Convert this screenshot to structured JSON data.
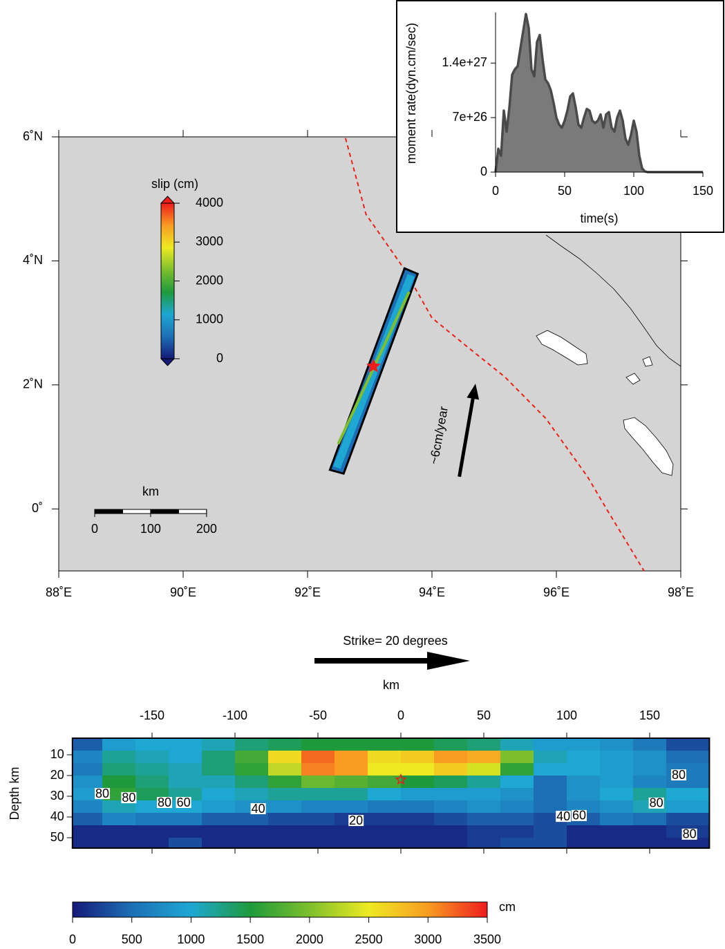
{
  "chart_data": [
    {
      "type": "map",
      "xlim": [
        88,
        98
      ],
      "ylim": [
        -1,
        6
      ],
      "xticks": [
        {
          "value": 88,
          "label": "88˚E"
        },
        {
          "value": 90,
          "label": "90˚E"
        },
        {
          "value": 92,
          "label": "92˚E"
        },
        {
          "value": 94,
          "label": "94˚E"
        },
        {
          "value": 96,
          "label": "96˚E"
        },
        {
          "value": 98,
          "label": "98˚E"
        }
      ],
      "yticks": [
        {
          "value": 0,
          "label": "0˚"
        },
        {
          "value": 2,
          "label": "2˚N"
        },
        {
          "value": 4,
          "label": "4˚N"
        },
        {
          "value": 6,
          "label": "6˚N"
        }
      ],
      "trench": {
        "color": "#e8201c",
        "lon": [
          92.61,
          92.94,
          93.56,
          94.0,
          94.61,
          95.17,
          95.83,
          96.5,
          96.83,
          97.41
        ],
        "lat": [
          5.98,
          4.75,
          3.86,
          3.08,
          2.58,
          2.13,
          1.46,
          0.52,
          -0.04,
          -1.0
        ]
      },
      "fault": {
        "lon": [
          93.56,
          93.77,
          92.58,
          92.36
        ],
        "lat": [
          3.88,
          3.79,
          0.57,
          0.63
        ]
      },
      "epicenter": {
        "lon": 93.06,
        "lat": 2.3
      },
      "plate_motion": {
        "label": "~6cm/year",
        "lon": [
          94.44,
          94.7
        ],
        "lat": [
          0.52,
          2.02
        ]
      },
      "scale_bar": {
        "label": "km",
        "ticks": [
          0,
          100,
          200
        ]
      },
      "colorbar": {
        "label": "slip (cm)",
        "range": [
          0,
          4000
        ],
        "ticks": [
          0,
          1000,
          2000,
          3000,
          4000
        ]
      },
      "colormap": [
        "#151a78",
        "#1d6fb5",
        "#1ea7d3",
        "#1e9a3c",
        "#7dbf2c",
        "#eeea22",
        "#f89c22",
        "#ee1c1c"
      ]
    },
    {
      "type": "area",
      "x": [
        0,
        2,
        4,
        6,
        8,
        10,
        12,
        14,
        16,
        18,
        20,
        22,
        24,
        26,
        28,
        30,
        32,
        34,
        36,
        38,
        40,
        42,
        44,
        46,
        48,
        50,
        52,
        54,
        56,
        58,
        60,
        62,
        64,
        66,
        68,
        70,
        72,
        74,
        76,
        78,
        80,
        82,
        84,
        86,
        88,
        90,
        92,
        94,
        96,
        98,
        100,
        102,
        104,
        106,
        108,
        110,
        120,
        130,
        140,
        150
      ],
      "values": [
        0,
        3e+26,
        2.1e+26,
        7.9e+26,
        5.2e+26,
        8.3e+26,
        1.25e+27,
        1.32e+27,
        1.36e+27,
        1.59e+27,
        1.81e+27,
        2.03e+27,
        1.85e+27,
        1.32e+27,
        1.23e+27,
        1.67e+27,
        1.76e+27,
        1.45e+27,
        1.19e+27,
        1.14e+27,
        1.05e+27,
        8.9e+26,
        7e+26,
        6.1e+26,
        5.7e+26,
        6.6e+26,
        7.9e+26,
        9.7e+26,
        1.01e+27,
        8.3e+26,
        6.1e+26,
        5.7e+26,
        7e+26,
        8.1e+26,
        7.9e+26,
        6.6e+26,
        6.3e+26,
        6.6e+26,
        7.4e+26,
        5.7e+26,
        7.4e+26,
        7.7e+26,
        5.7e+26,
        5.2e+26,
        7e+26,
        7.9e+26,
        6.6e+26,
        4.3e+26,
        3.5e+26,
        4.8e+26,
        6.6e+26,
        5.2e+26,
        2.1e+26,
        5e+25,
        1e+25,
        0,
        0,
        0,
        0,
        0
      ],
      "xlim": [
        0,
        150
      ],
      "ylim": [
        0,
        2.05e+27
      ],
      "xticks": [
        0,
        50,
        100,
        150
      ],
      "yticks": [
        0,
        {
          "value": 7e+26,
          "label": "7e+26"
        },
        {
          "value": 1.4e+27,
          "label": "1.4e+27"
        }
      ],
      "xlabel": "time(s)",
      "ylabel": "moment rate(dyn.cm/sec)",
      "color": "#7a7a7a"
    },
    {
      "type": "heatmap",
      "strike_label": "Strike= 20 degrees",
      "xlabel": "km",
      "ylabel": "Depth km",
      "xlim": [
        -198,
        186
      ],
      "ylim": [
        2,
        55
      ],
      "xticks": [
        -150,
        -100,
        -50,
        0,
        50,
        100,
        150
      ],
      "yticks": [
        10,
        20,
        30,
        40,
        50
      ],
      "x_edges": [
        -198,
        -180,
        -160,
        -140,
        -120,
        -100,
        -80,
        -60,
        -40,
        -20,
        0,
        20,
        40,
        60,
        80,
        100,
        120,
        140,
        160,
        186
      ],
      "depth_edges": [
        2,
        8,
        14,
        20,
        26,
        32,
        38,
        44,
        50,
        55
      ],
      "values": [
        [
          400,
          900,
          1000,
          1000,
          1100,
          1300,
          1400,
          1500,
          1500,
          1500,
          1500,
          1400,
          1300,
          1100,
          900,
          900,
          800,
          600,
          300
        ],
        [
          700,
          1200,
          1100,
          1000,
          1300,
          1700,
          2600,
          3200,
          3000,
          2600,
          2700,
          3000,
          2900,
          2000,
          1100,
          1000,
          900,
          800,
          500
        ],
        [
          600,
          1300,
          1200,
          1100,
          1300,
          1600,
          2300,
          3100,
          3000,
          2500,
          2500,
          2700,
          2400,
          1600,
          1000,
          1000,
          900,
          800,
          600
        ],
        [
          800,
          1500,
          1300,
          1100,
          1100,
          1300,
          1600,
          1900,
          1800,
          1700,
          1500,
          1400,
          1200,
          1000,
          500,
          800,
          900,
          700,
          600
        ],
        [
          900,
          1600,
          1400,
          1200,
          1000,
          1100,
          1200,
          1200,
          1200,
          1000,
          900,
          900,
          900,
          800,
          500,
          800,
          1000,
          1200,
          1000
        ],
        [
          700,
          1100,
          1000,
          1000,
          900,
          800,
          800,
          700,
          700,
          600,
          600,
          700,
          800,
          700,
          500,
          700,
          800,
          1100,
          900
        ],
        [
          400,
          700,
          600,
          600,
          400,
          400,
          300,
          300,
          200,
          200,
          200,
          300,
          400,
          400,
          300,
          400,
          600,
          500,
          300
        ],
        [
          100,
          100,
          100,
          100,
          100,
          100,
          100,
          100,
          100,
          100,
          100,
          100,
          200,
          200,
          300,
          100,
          100,
          100,
          200
        ],
        [
          100,
          100,
          100,
          300,
          100,
          100,
          100,
          100,
          100,
          100,
          100,
          100,
          200,
          300,
          300,
          100,
          100,
          100,
          100
        ]
      ],
      "epicenter": {
        "x": 0,
        "depth": 22
      },
      "contour_labels": [
        {
          "x": -180,
          "depth": 28.7,
          "value": 80
        },
        {
          "x": -164,
          "depth": 30.7,
          "value": 80
        },
        {
          "x": -142.5,
          "depth": 33,
          "value": 80
        },
        {
          "x": -131,
          "depth": 33,
          "value": 60
        },
        {
          "x": -86,
          "depth": 36,
          "value": 40
        },
        {
          "x": -27,
          "depth": 41.7,
          "value": 20
        },
        {
          "x": 98,
          "depth": 39.7,
          "value": 40
        },
        {
          "x": 107.5,
          "depth": 39.3,
          "value": 60
        },
        {
          "x": 154,
          "depth": 33.3,
          "value": 80
        },
        {
          "x": 167.5,
          "depth": 19.7,
          "value": 80
        },
        {
          "x": 174,
          "depth": 48.3,
          "value": 80
        }
      ],
      "colorbar": {
        "label": "cm",
        "range": [
          0,
          3500
        ],
        "ticks": [
          0,
          500,
          1000,
          1500,
          2000,
          2500,
          3000,
          3500
        ]
      },
      "colormap": [
        "#151a78",
        "#1d6fb5",
        "#1ea7d3",
        "#1e9a3c",
        "#7dbf2c",
        "#eeea22",
        "#f89c22",
        "#ee1c1c"
      ]
    }
  ]
}
